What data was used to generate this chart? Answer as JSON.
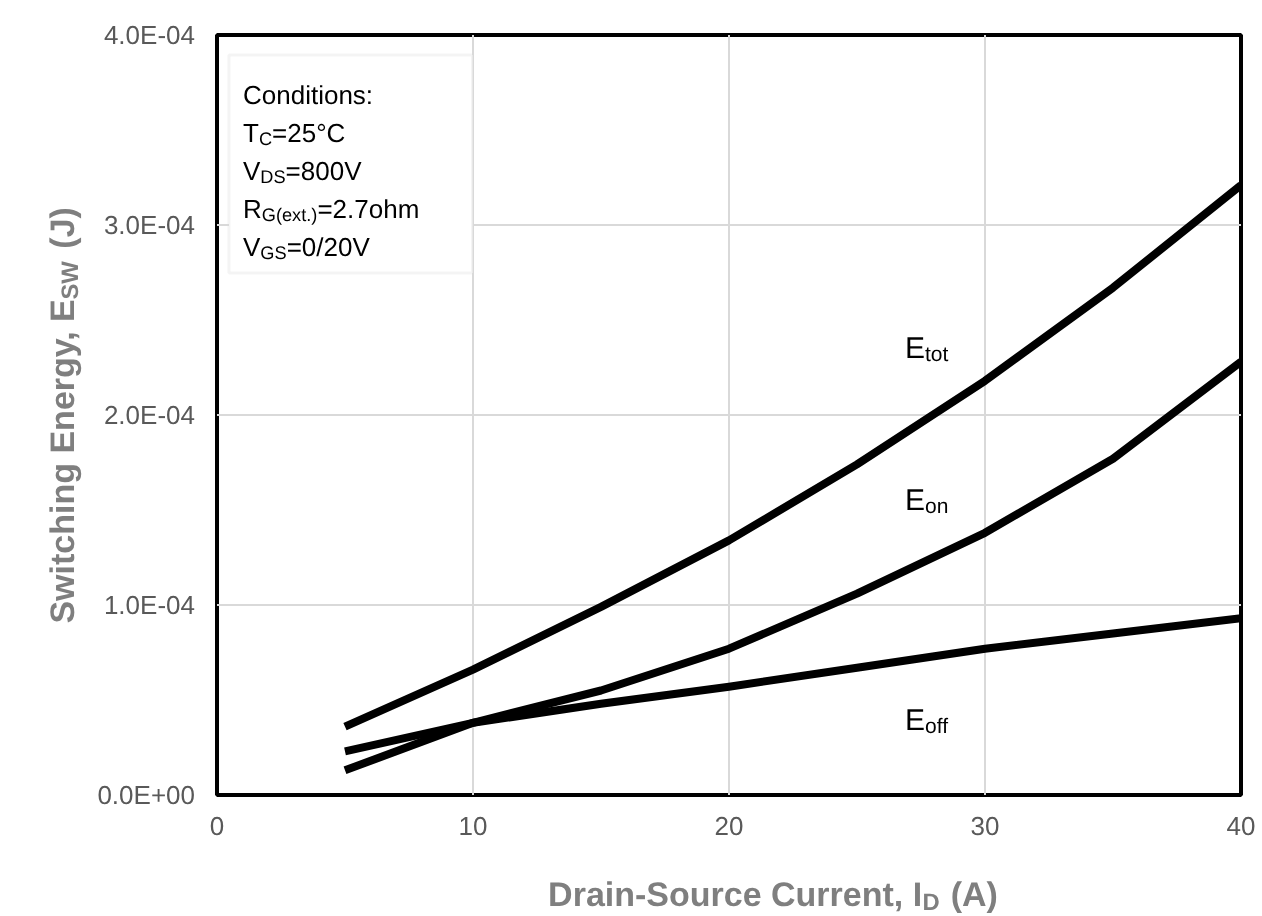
{
  "chart_data": {
    "type": "line",
    "xlabel": "Drain-Source Current, I$_{D}$ (A)",
    "ylabel": "Switching Energy, E$_{SW}$ (J)",
    "x": [
      5,
      10,
      15,
      20,
      25,
      30,
      35,
      40
    ],
    "series": [
      {
        "name": "E$_{tot}$",
        "color": "#000000",
        "values": [
          3.6e-05,
          6.6e-05,
          9.9e-05,
          0.000134,
          0.000174,
          0.000218,
          0.000267,
          0.000321
        ]
      },
      {
        "name": "E$_{on}$",
        "color": "#000000",
        "values": [
          1.3e-05,
          3.8e-05,
          5.5e-05,
          7.7e-05,
          0.000106,
          0.000138,
          0.000177,
          0.000228
        ]
      },
      {
        "name": "E$_{off}$",
        "color": "#000000",
        "values": [
          2.3e-05,
          3.8e-05,
          4.8e-05,
          5.7e-05,
          6.7e-05,
          7.7e-05,
          8.5e-05,
          9.3e-05
        ]
      }
    ],
    "xlim": [
      0,
      40
    ],
    "xticks": [
      0,
      10,
      20,
      30,
      40
    ],
    "ylim": [
      0,
      0.0004
    ],
    "yticks": [
      {
        "value": 0,
        "label": "0.0E+00"
      },
      {
        "value": 0.0001,
        "label": "1.0E-04"
      },
      {
        "value": 0.0002,
        "label": "2.0E-04"
      },
      {
        "value": 0.0003,
        "label": "3.0E-04"
      },
      {
        "value": 0.0004,
        "label": "4.0E-04"
      }
    ],
    "grid": true,
    "legend": false,
    "marker": "none",
    "line_style": "solid",
    "annotations": [
      "Conditions:",
      "T$_{C}$=25°C",
      "V$_{DS}$=800V",
      "R$_{G(ext.)}$=2.7ohm",
      "V$_{GS}$=0/20V"
    ]
  }
}
